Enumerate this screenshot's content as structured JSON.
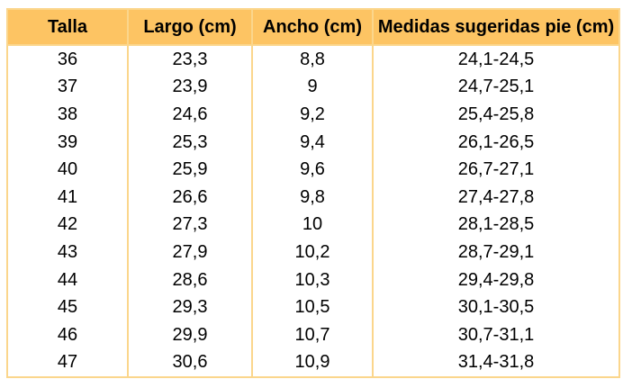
{
  "table": {
    "headers": [
      "Talla",
      "Largo (cm)",
      "Ancho (cm)",
      "Medidas sugeridas pie (cm)"
    ],
    "rows": [
      [
        "36",
        "23,3",
        "8,8",
        "24,1-24,5"
      ],
      [
        "37",
        "23,9",
        "9",
        "24,7-25,1"
      ],
      [
        "38",
        "24,6",
        "9,2",
        "25,4-25,8"
      ],
      [
        "39",
        "25,3",
        "9,4",
        "26,1-26,5"
      ],
      [
        "40",
        "25,9",
        "9,6",
        "26,7-27,1"
      ],
      [
        "41",
        "26,6",
        "9,8",
        "27,4-27,8"
      ],
      [
        "42",
        "27,3",
        "10",
        "28,1-28,5"
      ],
      [
        "43",
        "27,9",
        "10,2",
        "28,7-29,1"
      ],
      [
        "44",
        "28,6",
        "10,3",
        "29,4-29,8"
      ],
      [
        "45",
        "29,3",
        "10,5",
        "30,1-30,5"
      ],
      [
        "46",
        "29,9",
        "10,7",
        "30,7-31,1"
      ],
      [
        "47",
        "30,6",
        "10,9",
        "31,4-31,8"
      ]
    ]
  },
  "colors": {
    "header_bg": "#fdc463",
    "border": "#fbd68c",
    "text": "#000000"
  }
}
